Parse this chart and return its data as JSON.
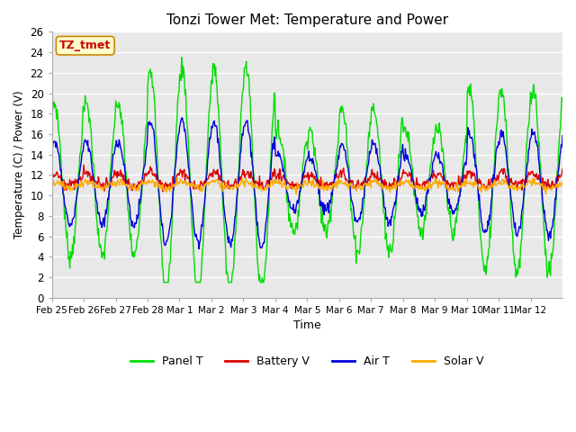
{
  "title": "Tonzi Tower Met: Temperature and Power",
  "xlabel": "Time",
  "ylabel": "Temperature (C) / Power (V)",
  "ylim": [
    0,
    26
  ],
  "yticks": [
    0,
    2,
    4,
    6,
    8,
    10,
    12,
    14,
    16,
    18,
    20,
    22,
    24,
    26
  ],
  "xtick_labels": [
    "Feb 25",
    "Feb 26",
    "Feb 27",
    "Feb 28",
    "Mar 1",
    "Mar 2",
    "Mar 3",
    "Mar 4",
    "Mar 5",
    "Mar 6",
    "Mar 7",
    "Mar 8",
    "Mar 9",
    "Mar 10",
    "Mar 11",
    "Mar 12"
  ],
  "fig_bg": "#ffffff",
  "plot_bg": "#e8e8e8",
  "grid_color": "#ffffff",
  "annotation_text": "TZ_tmet",
  "annotation_bg": "#ffffcc",
  "annotation_fg": "#cc0000",
  "annotation_edge": "#cc8800",
  "legend_items": [
    "Panel T",
    "Battery V",
    "Air T",
    "Solar V"
  ],
  "legend_colors": [
    "#00dd00",
    "#dd0000",
    "#0000dd",
    "#ffaa00"
  ],
  "series_colors": [
    "#00dd00",
    "#dd0000",
    "#0000dd",
    "#ffaa00"
  ],
  "figsize": [
    6.4,
    4.8
  ],
  "dpi": 100
}
